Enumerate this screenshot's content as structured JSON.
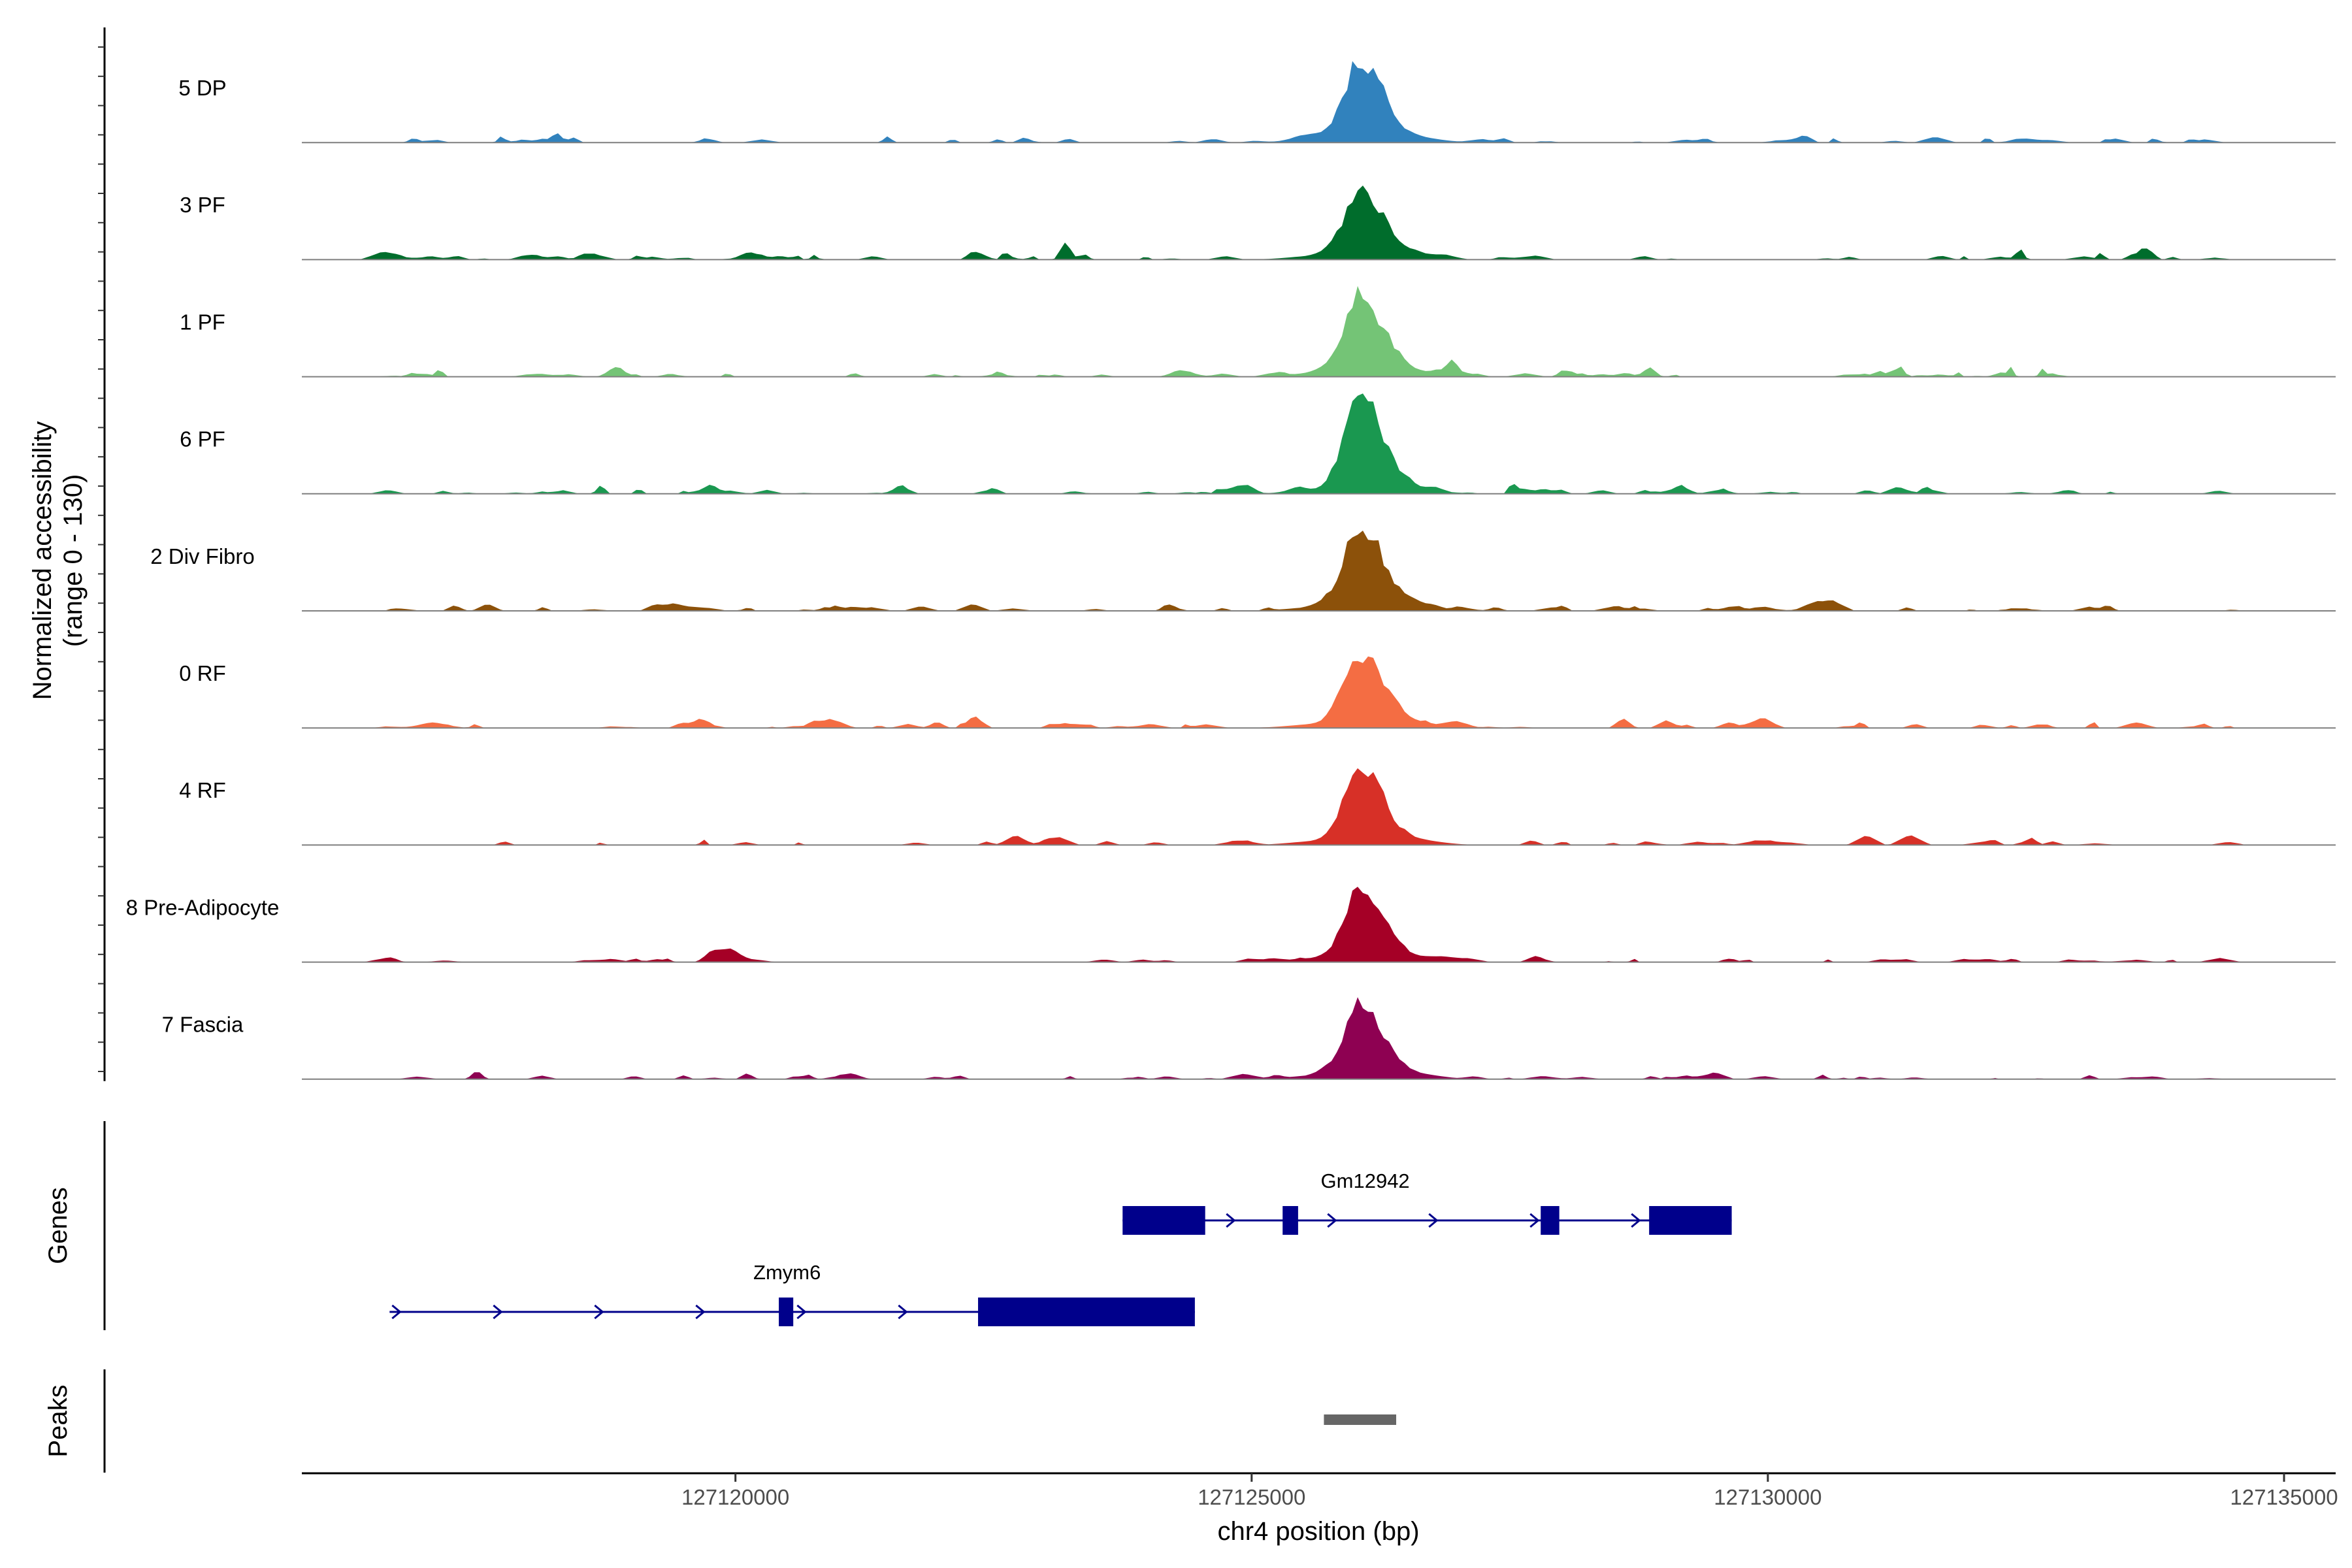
{
  "chart_data": {
    "type": "area",
    "y_axis_title_line1": "Normalized accessibility",
    "y_axis_title_line2": "(range 0 - 130)",
    "y_range": [
      0,
      130
    ],
    "x_axis_title": "chr4 position (bp)",
    "x_range": [
      127115800,
      127135500
    ],
    "x_ticks": [
      127120000,
      127125000,
      127130000,
      127135000
    ],
    "x_tick_labels": [
      "127120000",
      "127125000",
      "127130000",
      "127135000"
    ],
    "peak_center": 127126050,
    "tracks": [
      {
        "name": "5 DP",
        "color": "#3182bd",
        "peak": 95
      },
      {
        "name": "3 PF",
        "color": "#006d2c",
        "peak": 82
      },
      {
        "name": "1 PF",
        "color": "#74c476",
        "peak": 100
      },
      {
        "name": "6 PF",
        "color": "#1a9850",
        "peak": 125
      },
      {
        "name": "2 Div Fibro",
        "color": "#8c510a",
        "peak": 102
      },
      {
        "name": "0 RF",
        "color": "#f46d43",
        "peak": 92
      },
      {
        "name": "4 RF",
        "color": "#d73027",
        "peak": 90
      },
      {
        "name": "8 Pre-Adipocyte",
        "color": "#a50026",
        "peak": 88
      },
      {
        "name": "7 Fascia",
        "color": "#8e0152",
        "peak": 90
      }
    ],
    "genes_panel_title": "Genes",
    "peaks_panel_title": "Peaks",
    "gene_color": "#00008b",
    "genes": [
      {
        "name": "Gm12942",
        "row": 0,
        "start": 127123750,
        "end": 127129650,
        "exons": [
          [
            127123750,
            127124550
          ],
          [
            127125300,
            127125450
          ],
          [
            127127800,
            127127980
          ],
          [
            127128850,
            127129650
          ]
        ],
        "label_pos": 127126100
      },
      {
        "name": "Zmym6",
        "row": 1,
        "start": 127116650,
        "end": 127124450,
        "exons": [
          [
            127120420,
            127120560
          ],
          [
            127122350,
            127124450
          ]
        ],
        "label_pos": 127120500
      }
    ],
    "peak_regions": [
      {
        "start": 127125700,
        "end": 127126400,
        "color": "#666666"
      }
    ]
  }
}
